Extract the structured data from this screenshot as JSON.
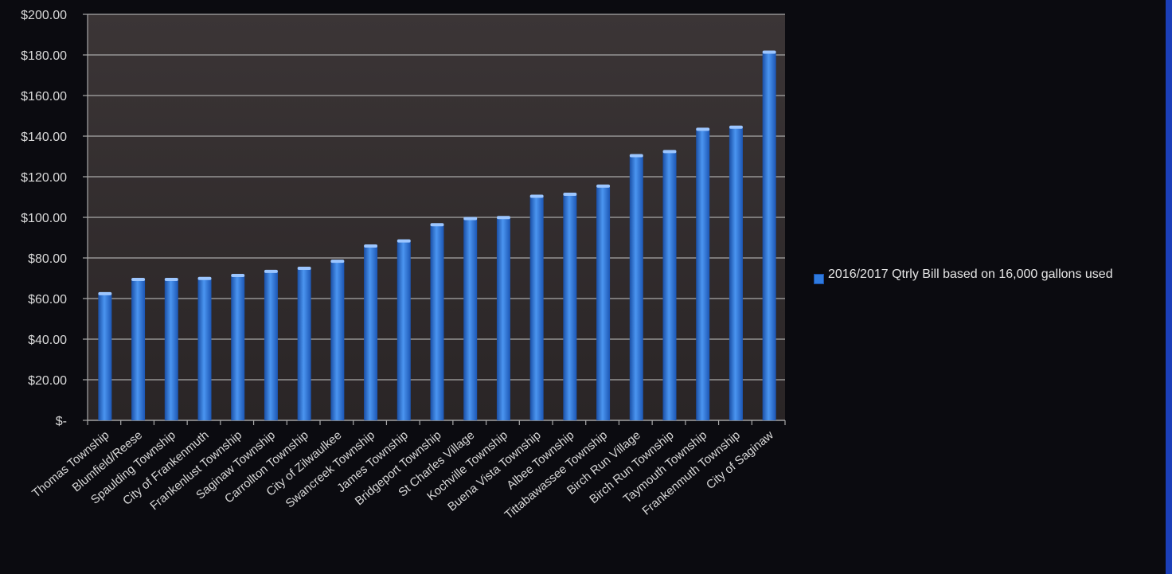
{
  "chart_data": {
    "type": "bar",
    "title": "",
    "xlabel": "",
    "ylabel": "",
    "ylim": [
      0,
      200
    ],
    "grid": true,
    "legend_placement": "right",
    "yticks": [
      {
        "value": 0,
        "label": "$-"
      },
      {
        "value": 20,
        "label": "$20.00"
      },
      {
        "value": 40,
        "label": "$40.00"
      },
      {
        "value": 60,
        "label": "$60.00"
      },
      {
        "value": 80,
        "label": "$80.00"
      },
      {
        "value": 100,
        "label": "$100.00"
      },
      {
        "value": 120,
        "label": "$120.00"
      },
      {
        "value": 140,
        "label": "$140.00"
      },
      {
        "value": 160,
        "label": "$160.00"
      },
      {
        "value": 180,
        "label": "$180.00"
      },
      {
        "value": 200,
        "label": "$200.00"
      }
    ],
    "categories": [
      "Thomas Township",
      "Blumfield/Reese",
      "Spaulding Township",
      "City of Frankenmuth",
      "Frankenlust Township",
      "Saginaw Township",
      "Carrollton Township",
      "City of Zilwaulkee",
      "Swancreek Township",
      "James Township",
      "Bridgeport Township",
      "St Charles Village",
      "Kochville Township",
      "Buena Vista Township",
      "Albee Township",
      "Tittabawassee Township",
      "Birch Run Village",
      "Birch Run Township",
      "Taymouth Township",
      "Frankenmuth Township",
      "City of Saginaw"
    ],
    "series": [
      {
        "name": "2016/2017 Qtrly Bill based on 16,000 gallons used",
        "color": "#2f7be0",
        "values": [
          62,
          69,
          69,
          69.5,
          71,
          73,
          74.5,
          78,
          85.5,
          88,
          96,
          99,
          99.5,
          110,
          111,
          115,
          130,
          132,
          143,
          144,
          181
        ]
      }
    ]
  }
}
